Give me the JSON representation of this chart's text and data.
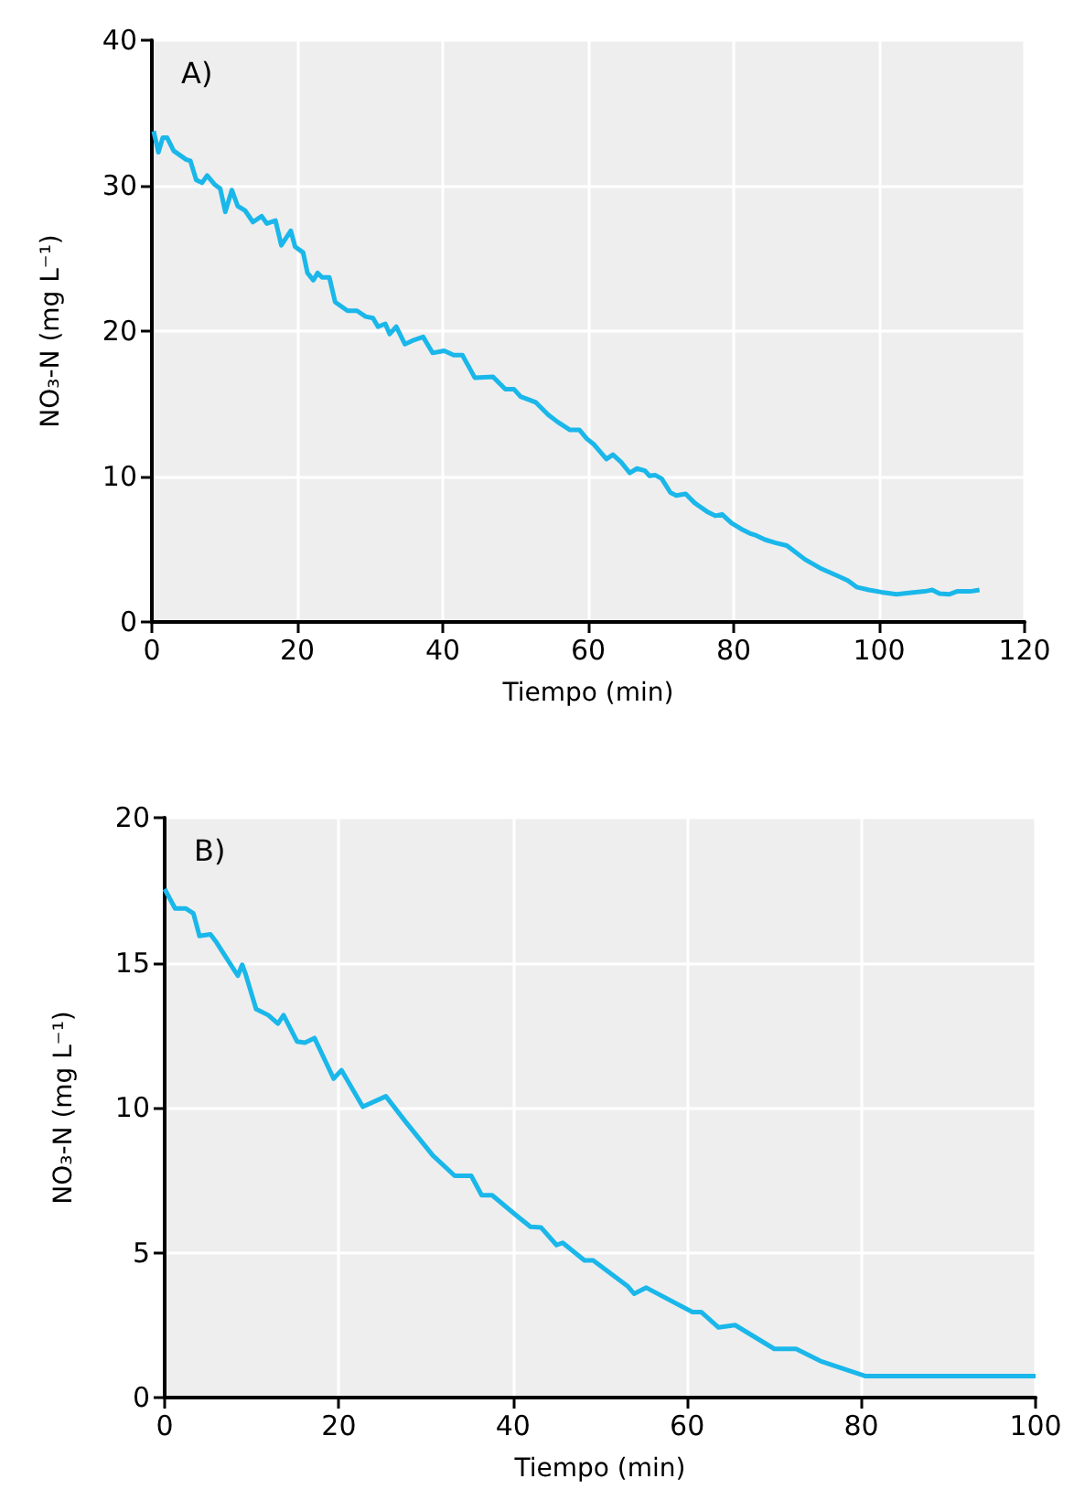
{
  "chart_data": [
    {
      "type": "line",
      "xlabel": "Tiempo (min)",
      "ylabel": "NO₃-N (mg L⁻¹)",
      "annotations": [
        "A)"
      ],
      "xlim": [
        0,
        120
      ],
      "xticks": [
        0,
        20,
        40,
        60,
        80,
        100,
        120
      ],
      "ylim": [
        0,
        40
      ],
      "yticks": [
        0,
        10,
        20,
        30,
        40
      ],
      "grid": true,
      "marker": "none",
      "line_style": "solid",
      "series": [
        {
          "color": "#1ab7ea",
          "x": [
            0.25,
            0.9,
            1.5,
            2.1,
            3.0,
            3.85,
            4.7,
            5.3,
            6.1,
            6.9,
            7.6,
            8.6,
            9.4,
            10.1,
            11,
            11.8,
            12.8,
            13.9,
            15.1,
            15.8,
            17,
            17.8,
            19.1,
            19.7,
            20.8,
            21.4,
            22.2,
            22.8,
            23.4,
            24.4,
            25.2,
            26.9,
            28.2,
            29.4,
            30.4,
            31.1,
            32.1,
            32.7,
            33.6,
            34.8,
            36.1,
            37.3,
            38.6,
            40.2,
            41.5,
            42.7,
            44.4,
            46.9,
            48.6,
            49.8,
            50.7,
            52.8,
            54.5,
            55.8,
            57.5,
            58.8,
            59.8,
            60.8,
            62.5,
            63.4,
            64.5,
            65.7,
            66.7,
            67.8,
            68.4,
            69.2,
            70.1,
            71.3,
            72.1,
            73.4,
            74.6,
            76.3,
            77.5,
            78.4,
            79.7,
            81,
            82.2,
            83.1,
            84.3,
            85.7,
            87.3,
            88.1,
            89.8,
            91.9,
            94.4,
            95.7,
            96.9,
            98.6,
            100.3,
            102.4,
            104.1,
            106.2,
            107.3,
            108.3,
            109.6,
            110.7,
            112.5,
            113.8
          ],
          "values": [
            33.75,
            32.3,
            33.3,
            33.3,
            32.4,
            32.1,
            31.8,
            31.7,
            30.4,
            30.2,
            30.7,
            30.1,
            29.8,
            28.2,
            29.7,
            28.6,
            28.3,
            27.5,
            27.9,
            27.4,
            27.6,
            25.9,
            26.9,
            25.8,
            25.4,
            24.0,
            23.5,
            24.0,
            23.7,
            23.7,
            22.0,
            21.4,
            21.4,
            21.0,
            20.9,
            20.3,
            20.5,
            19.8,
            20.3,
            19.1,
            19.4,
            19.6,
            18.5,
            18.65,
            18.35,
            18.35,
            16.8,
            16.85,
            16.0,
            16.0,
            15.5,
            15.1,
            14.25,
            13.75,
            13.2,
            13.2,
            12.6,
            12.2,
            11.2,
            11.5,
            11.0,
            10.25,
            10.55,
            10.4,
            10.05,
            10.1,
            9.85,
            8.9,
            8.7,
            8.8,
            8.2,
            7.6,
            7.3,
            7.4,
            6.8,
            6.4,
            6.1,
            5.95,
            5.66,
            5.45,
            5.25,
            4.95,
            4.3,
            3.7,
            3.15,
            2.85,
            2.4,
            2.2,
            2.05,
            1.9,
            2.0,
            2.1,
            2.2,
            1.95,
            1.9,
            2.1,
            2.1,
            2.2
          ]
        }
      ]
    },
    {
      "type": "line",
      "xlabel": "Tiempo (min)",
      "ylabel": "NO₃-N (mg L⁻¹)",
      "annotations": [
        "B)"
      ],
      "xlim": [
        0,
        100
      ],
      "xticks": [
        0,
        20,
        40,
        60,
        80,
        100
      ],
      "ylim": [
        0,
        20
      ],
      "yticks": [
        0,
        5,
        10,
        15,
        20
      ],
      "grid": true,
      "marker": "none",
      "line_style": "solid",
      "series": [
        {
          "color": "#1ab7ea",
          "x": [
            0,
            1.2,
            2.4,
            3.3,
            4.0,
            5.25,
            5.95,
            8.4,
            8.9,
            9.3,
            10.5,
            11.9,
            13.0,
            13.65,
            15.2,
            16.1,
            17.2,
            19.4,
            20.3,
            22.75,
            25.4,
            27.7,
            30.8,
            33.3,
            35.2,
            36.4,
            37.6,
            40.3,
            42,
            43.2,
            45.0,
            45.7,
            48.2,
            49.2,
            53.2,
            53.9,
            55.3,
            60.6,
            61.6,
            63.6,
            65.5,
            70.0,
            72.5,
            75.3,
            80.5,
            100
          ],
          "values": [
            17.54,
            16.87,
            16.87,
            16.7,
            15.92,
            15.98,
            15.7,
            14.55,
            14.93,
            14.6,
            13.4,
            13.19,
            12.9,
            13.19,
            12.28,
            12.24,
            12.4,
            11.0,
            11.29,
            10.03,
            10.39,
            9.5,
            8.35,
            7.65,
            7.65,
            6.98,
            6.98,
            6.3,
            5.89,
            5.87,
            5.26,
            5.34,
            4.73,
            4.73,
            3.83,
            3.58,
            3.79,
            2.95,
            2.95,
            2.42,
            2.5,
            1.68,
            1.68,
            1.26,
            0.74,
            0.74
          ]
        }
      ]
    }
  ]
}
